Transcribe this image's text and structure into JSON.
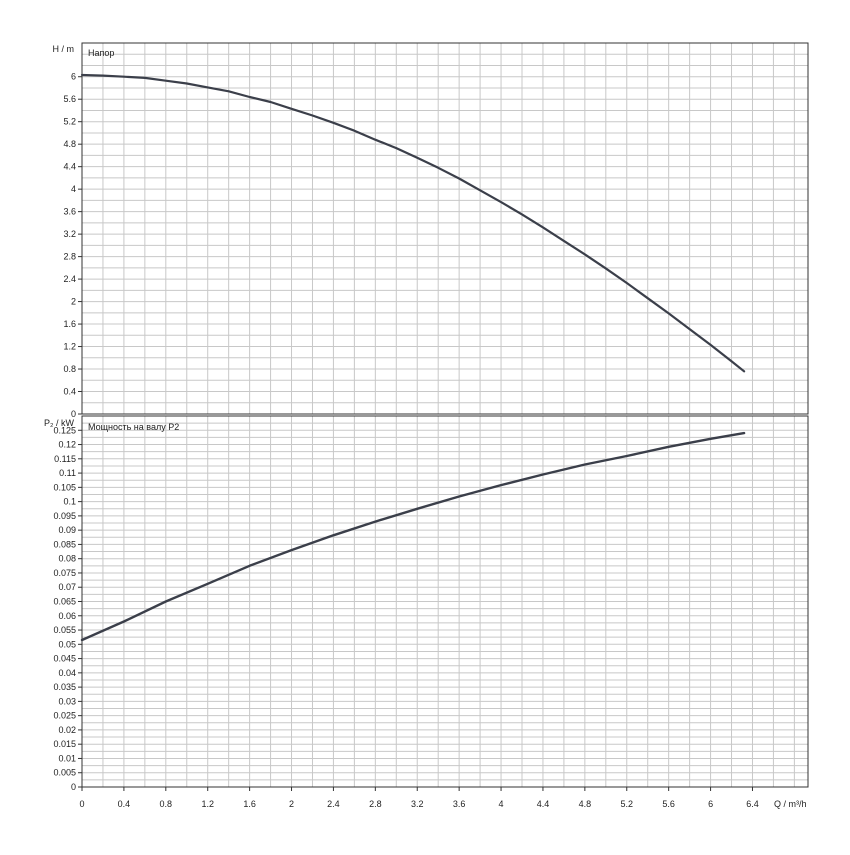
{
  "chart_data": [
    {
      "type": "line",
      "title": "Напор",
      "ylabel": "H / m",
      "xlim": [
        0,
        6.93
      ],
      "ylim": [
        0,
        6.6
      ],
      "x_ticks": [
        "0",
        "0.4",
        "0.8",
        "1.2",
        "1.6",
        "2",
        "2.4",
        "2.8",
        "3.2",
        "3.6",
        "4",
        "4.4",
        "4.8",
        "5.2",
        "5.6",
        "6",
        "6.4"
      ],
      "y_ticks": [
        "0",
        "0.4",
        "0.8",
        "1.2",
        "1.6",
        "2",
        "2.4",
        "2.8",
        "3.2",
        "3.6",
        "4",
        "4.4",
        "4.8",
        "5.2",
        "5.6",
        "6"
      ],
      "grid": true,
      "series": [
        {
          "x": [
            0,
            0.2,
            0.4,
            0.6,
            0.8,
            1.0,
            1.2,
            1.4,
            1.6,
            1.8,
            2.0,
            2.2,
            2.4,
            2.6,
            2.8,
            3.0,
            3.2,
            3.4,
            3.6,
            3.8,
            4.0,
            4.2,
            4.4,
            4.6,
            4.8,
            5.0,
            5.2,
            5.4,
            5.6,
            5.8,
            6.0,
            6.2,
            6.32
          ],
          "y": [
            6.03,
            6.02,
            6.0,
            5.98,
            5.93,
            5.88,
            5.81,
            5.74,
            5.64,
            5.55,
            5.43,
            5.31,
            5.18,
            5.04,
            4.88,
            4.73,
            4.56,
            4.38,
            4.19,
            3.98,
            3.77,
            3.55,
            3.32,
            3.08,
            2.84,
            2.59,
            2.33,
            2.06,
            1.79,
            1.51,
            1.23,
            0.94,
            0.76
          ]
        }
      ]
    },
    {
      "type": "line",
      "title": "Мощность на валу P2",
      "ylabel": "P₂ / kW",
      "xlabel": "Q / m³/h",
      "xlim": [
        0,
        6.93
      ],
      "ylim": [
        0,
        0.13
      ],
      "x_ticks": [
        "0",
        "0.4",
        "0.8",
        "1.2",
        "1.6",
        "2",
        "2.4",
        "2.8",
        "3.2",
        "3.6",
        "4",
        "4.4",
        "4.8",
        "5.2",
        "5.6",
        "6",
        "6.4"
      ],
      "y_ticks": [
        "0",
        "0.005",
        "0.01",
        "0.015",
        "0.02",
        "0.025",
        "0.03",
        "0.035",
        "0.04",
        "0.045",
        "0.05",
        "0.055",
        "0.06",
        "0.065",
        "0.07",
        "0.075",
        "0.08",
        "0.085",
        "0.09",
        "0.095",
        "0.1",
        "0.105",
        "0.11",
        "0.115",
        "0.12",
        "0.125"
      ],
      "grid": true,
      "series": [
        {
          "x": [
            0,
            0.4,
            0.8,
            1.2,
            1.6,
            2.0,
            2.4,
            2.8,
            3.2,
            3.6,
            4.0,
            4.4,
            4.8,
            5.2,
            5.6,
            6.0,
            6.32
          ],
          "y": [
            0.0515,
            0.058,
            0.065,
            0.0712,
            0.0775,
            0.083,
            0.0882,
            0.093,
            0.0975,
            0.1018,
            0.1058,
            0.1095,
            0.113,
            0.116,
            0.1192,
            0.122,
            0.124
          ]
        }
      ]
    }
  ]
}
